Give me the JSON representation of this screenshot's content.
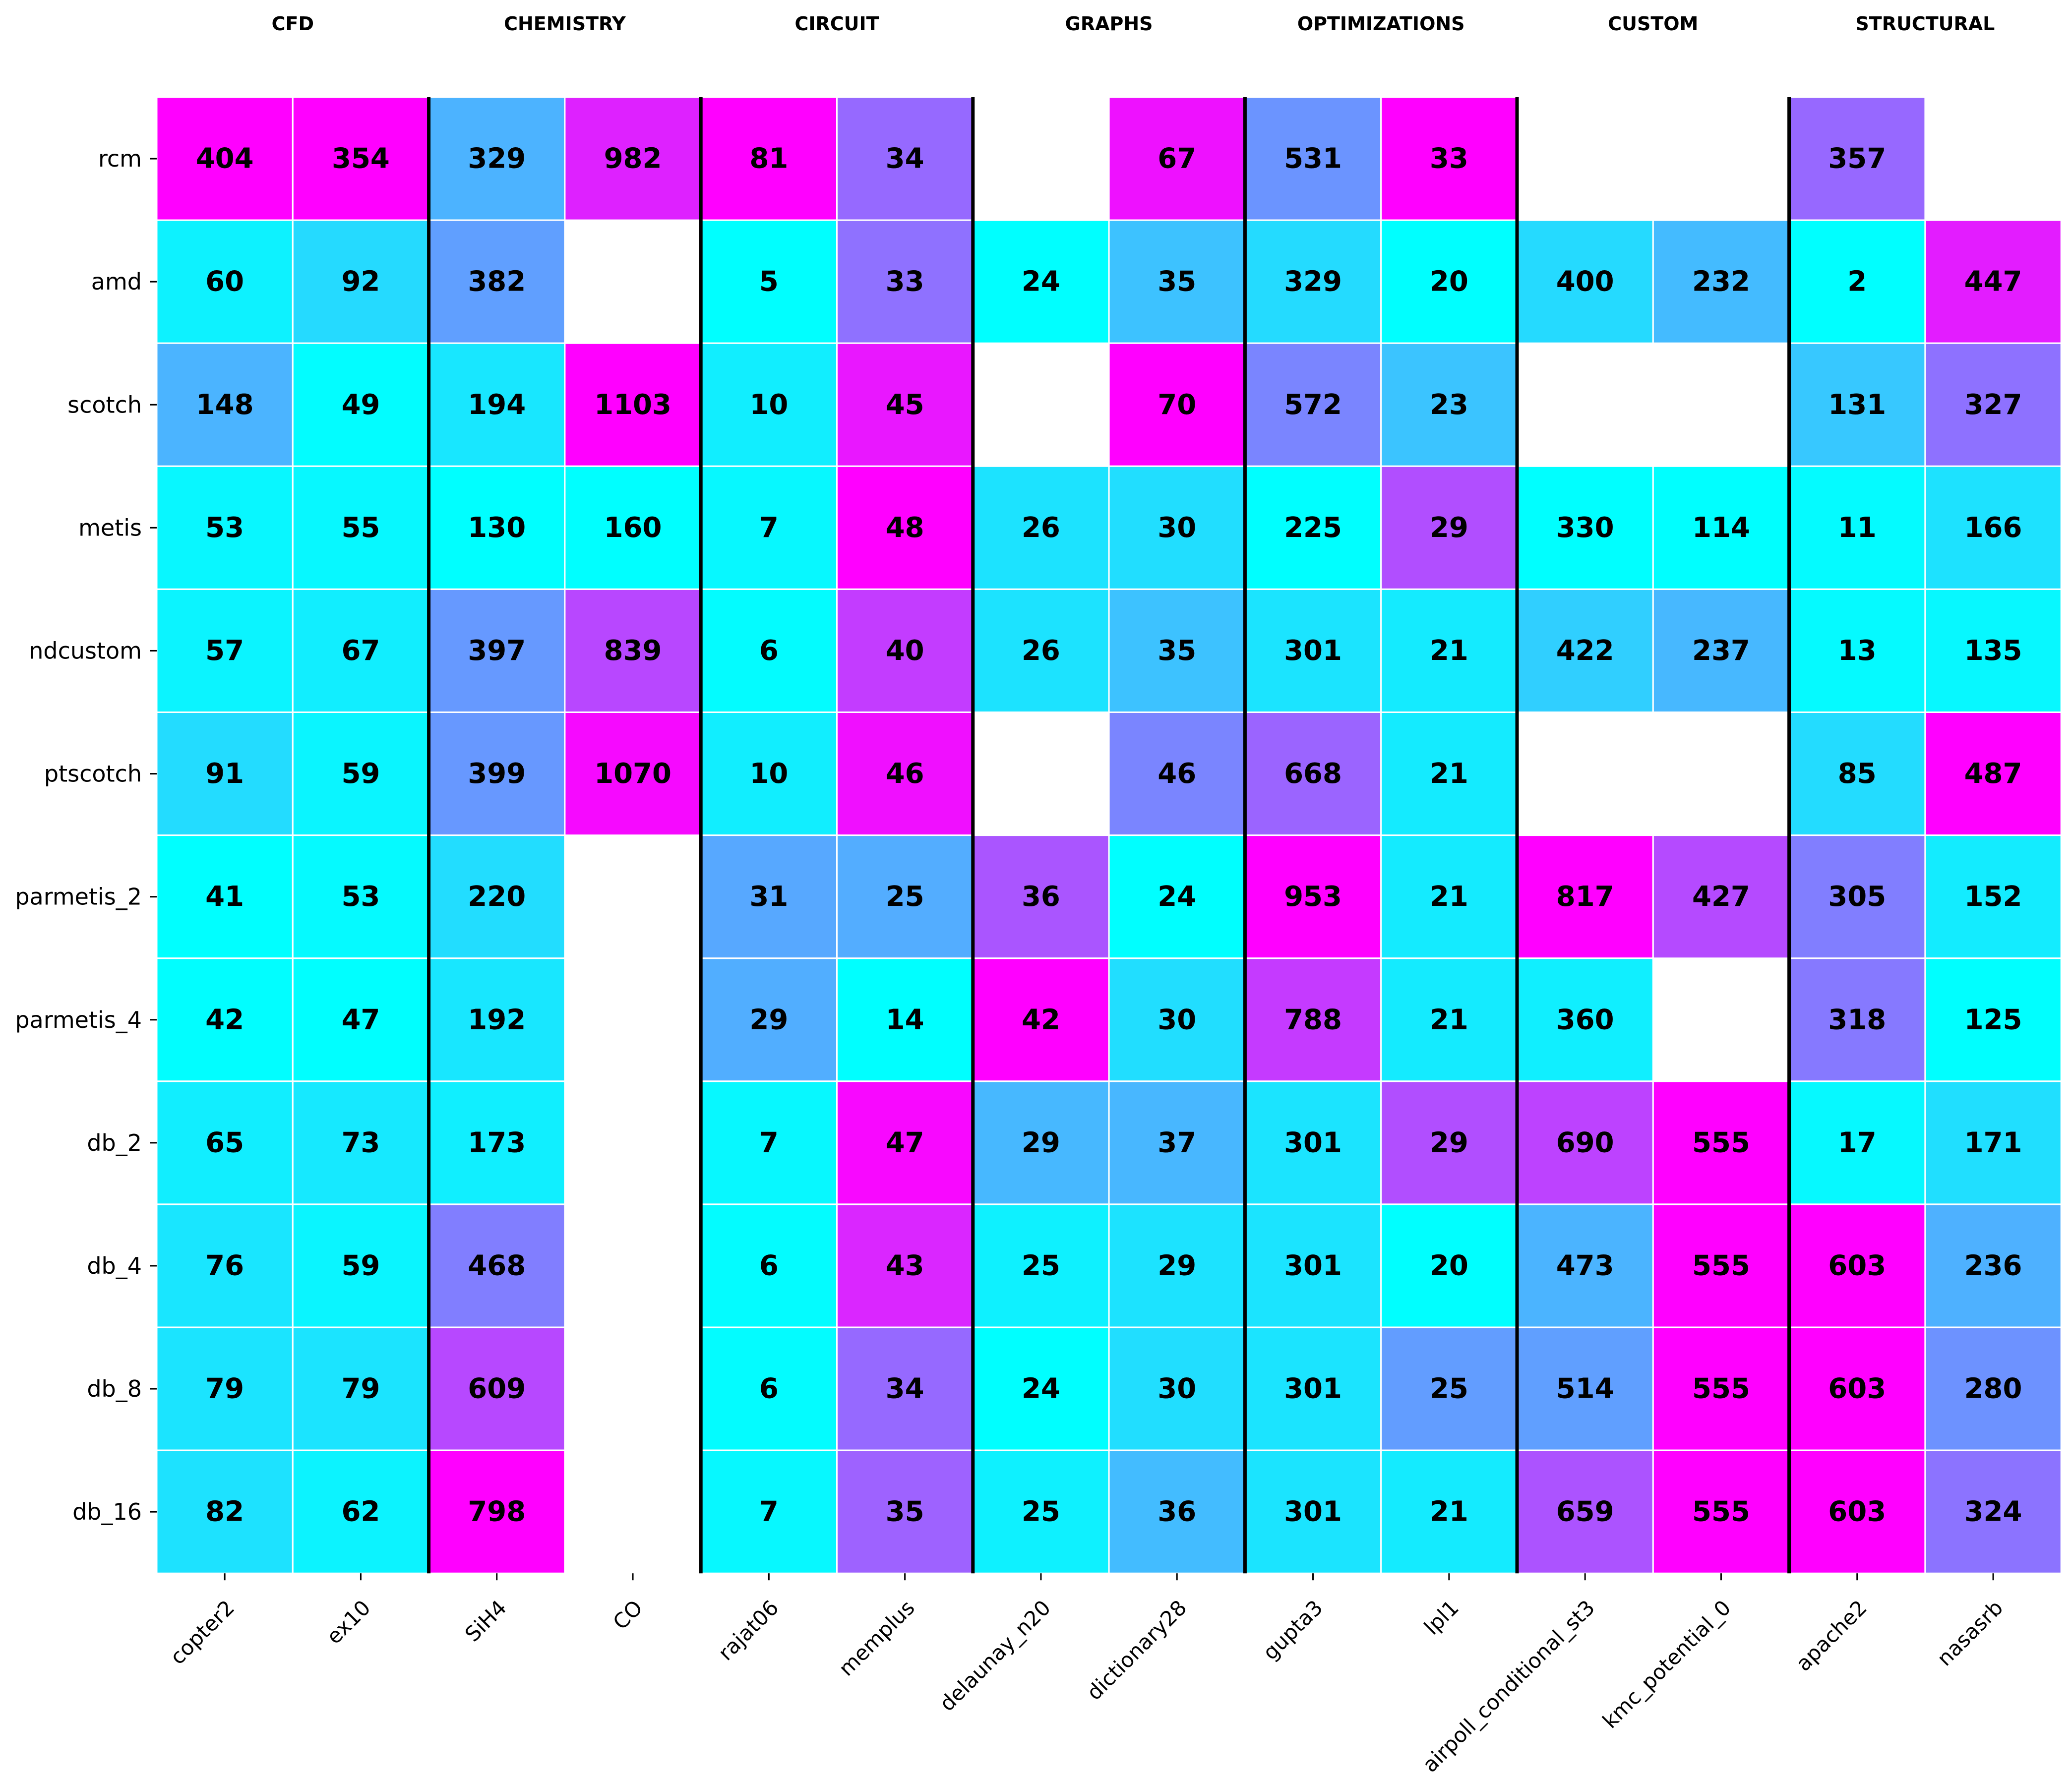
{
  "chart_data": {
    "type": "heatmap",
    "colormap": "cool",
    "color_low": "#00ffff",
    "color_high": "#ff00ff",
    "groups": [
      {
        "name": "CFD",
        "columns": [
          "copter2",
          "ex10"
        ]
      },
      {
        "name": "CHEMISTRY",
        "columns": [
          "SiH4",
          "CO"
        ]
      },
      {
        "name": "CIRCUIT",
        "columns": [
          "rajat06",
          "memplus"
        ]
      },
      {
        "name": "GRAPHS",
        "columns": [
          "delaunay_n20",
          "dictionary28"
        ]
      },
      {
        "name": "OPTIMIZATIONS",
        "columns": [
          "gupta3",
          "lpl1"
        ]
      },
      {
        "name": "CUSTOM",
        "columns": [
          "airpoll_conditional_st3",
          "kmc_potential_0"
        ]
      },
      {
        "name": "STRUCTURAL",
        "columns": [
          "apache2",
          "nasasrb"
        ]
      }
    ],
    "columns": [
      "copter2",
      "ex10",
      "SiH4",
      "CO",
      "rajat06",
      "memplus",
      "delaunay_n20",
      "dictionary28",
      "gupta3",
      "lpl1",
      "airpoll_conditional_st3",
      "kmc_potential_0",
      "apache2",
      "nasasrb"
    ],
    "rows": [
      "rcm",
      "amd",
      "scotch",
      "metis",
      "ndcustom",
      "ptscotch",
      "parmetis_2",
      "parmetis_4",
      "db_2",
      "db_4",
      "db_8",
      "db_16"
    ],
    "values": [
      [
        404,
        354,
        329,
        982,
        81,
        34,
        null,
        67,
        531,
        33,
        null,
        null,
        357,
        null
      ],
      [
        60,
        92,
        382,
        null,
        5,
        33,
        24,
        35,
        329,
        20,
        400,
        232,
        2,
        447
      ],
      [
        148,
        49,
        194,
        1103,
        10,
        45,
        null,
        70,
        572,
        23,
        null,
        null,
        131,
        327
      ],
      [
        53,
        55,
        130,
        160,
        7,
        48,
        26,
        30,
        225,
        29,
        330,
        114,
        11,
        166
      ],
      [
        57,
        67,
        397,
        839,
        6,
        40,
        26,
        35,
        301,
        21,
        422,
        237,
        13,
        135
      ],
      [
        91,
        59,
        399,
        1070,
        10,
        46,
        null,
        46,
        668,
        21,
        null,
        null,
        85,
        487
      ],
      [
        41,
        53,
        220,
        null,
        31,
        25,
        36,
        24,
        953,
        21,
        817,
        427,
        305,
        152
      ],
      [
        42,
        47,
        192,
        null,
        29,
        14,
        42,
        30,
        788,
        21,
        360,
        null,
        318,
        125
      ],
      [
        65,
        73,
        173,
        null,
        7,
        47,
        29,
        37,
        301,
        29,
        690,
        555,
        17,
        171
      ],
      [
        76,
        59,
        468,
        null,
        6,
        43,
        25,
        29,
        301,
        20,
        473,
        555,
        603,
        236
      ],
      [
        79,
        79,
        609,
        null,
        6,
        34,
        24,
        30,
        301,
        25,
        514,
        555,
        603,
        280
      ],
      [
        82,
        62,
        798,
        null,
        7,
        35,
        25,
        36,
        301,
        21,
        659,
        555,
        603,
        324
      ]
    ],
    "color_scale": "per-column min-max"
  }
}
